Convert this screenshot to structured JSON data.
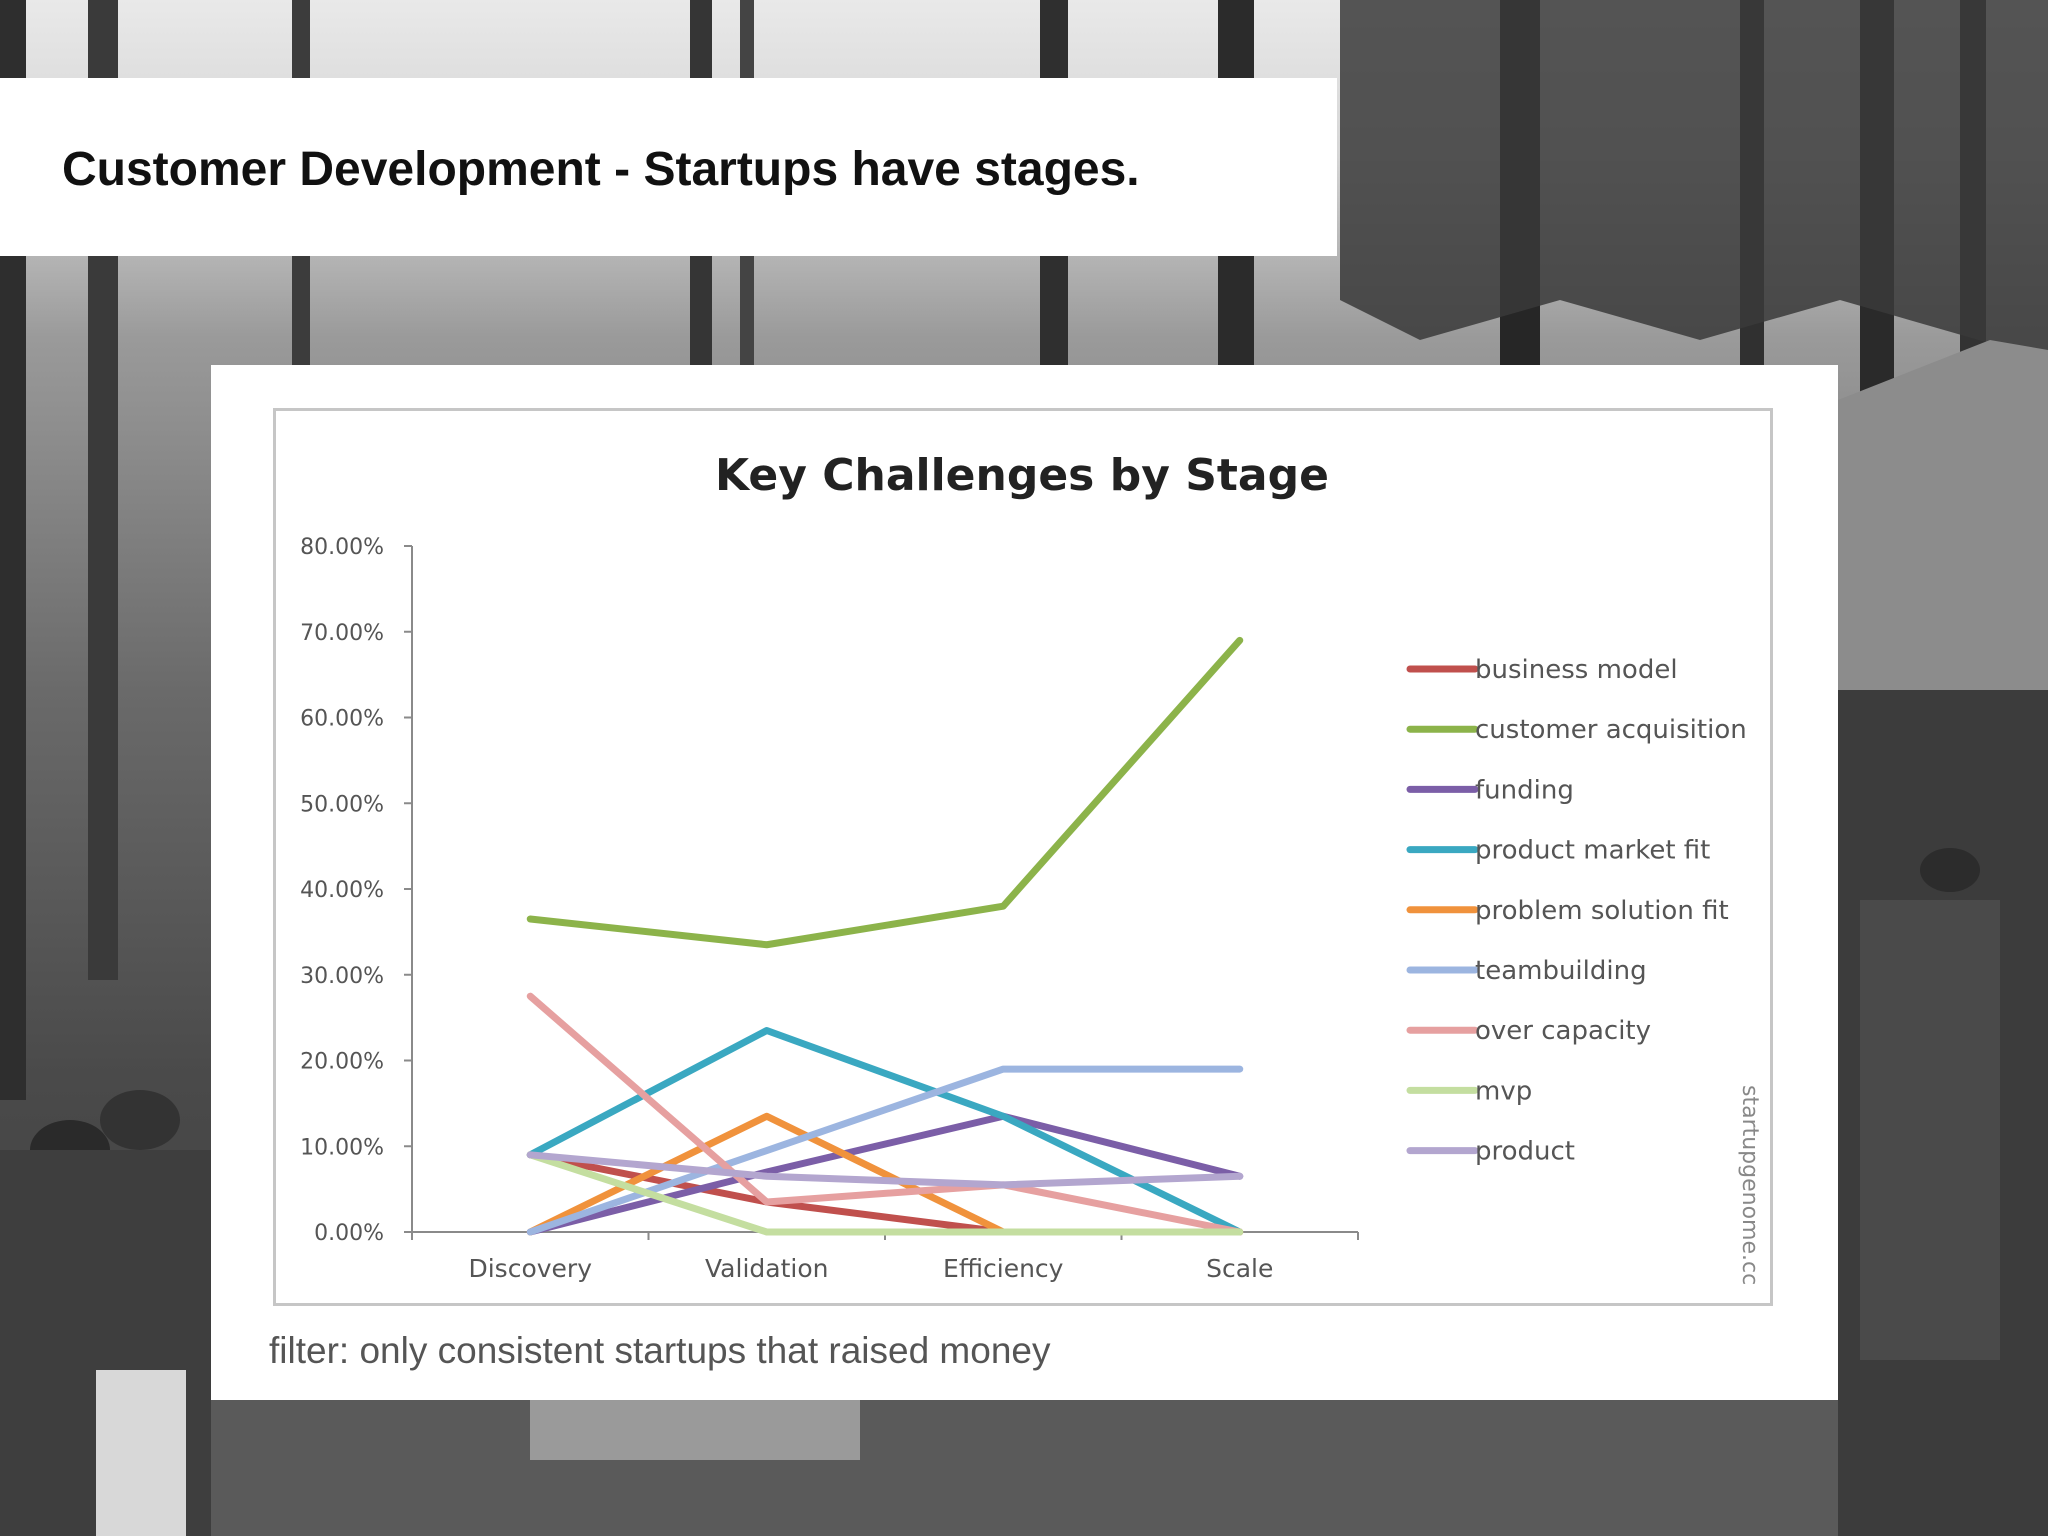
{
  "slide": {
    "title": "Customer Development - Startups have stages.",
    "note": "filter: only consistent startups that raised money",
    "credit": "startupgenome.cc"
  },
  "colors": {
    "business model": "#c0504d",
    "customer acquisition": "#8cb34a",
    "funding": "#7b5ea7",
    "product market fit": "#3aa8c1",
    "problem solution fit": "#f0923c",
    "teambuilding": "#9cb5e0",
    "over capacity": "#e6a0a0",
    "mvp": "#c4dea0",
    "product": "#b3a6cf"
  },
  "chart_data": {
    "type": "line",
    "title": "Key Challenges by Stage",
    "xlabel": "",
    "ylabel": "",
    "categories": [
      "Discovery",
      "Validation",
      "Efficiency",
      "Scale"
    ],
    "yticks": [
      "0.00%",
      "10.00%",
      "20.00%",
      "30.00%",
      "40.00%",
      "50.00%",
      "60.00%",
      "70.00%",
      "80.00%"
    ],
    "ylim": [
      0,
      80
    ],
    "legend_position": "right",
    "series": [
      {
        "name": "business model",
        "values": [
          9,
          3.5,
          0,
          0
        ]
      },
      {
        "name": "customer acquisition",
        "values": [
          36.5,
          33.5,
          38,
          69
        ]
      },
      {
        "name": "funding",
        "values": [
          0,
          7,
          13.5,
          6.5
        ]
      },
      {
        "name": "product market fit",
        "values": [
          9,
          23.5,
          13.5,
          0
        ]
      },
      {
        "name": "problem solution fit",
        "values": [
          0,
          13.5,
          0,
          0
        ]
      },
      {
        "name": "teambuilding",
        "values": [
          0,
          9.5,
          19,
          19
        ]
      },
      {
        "name": "over capacity",
        "values": [
          27.5,
          3.5,
          5.5,
          0
        ]
      },
      {
        "name": "mvp",
        "values": [
          9,
          0,
          0,
          0
        ]
      },
      {
        "name": "product",
        "values": [
          9,
          6.5,
          5.5,
          6.5
        ]
      }
    ]
  }
}
